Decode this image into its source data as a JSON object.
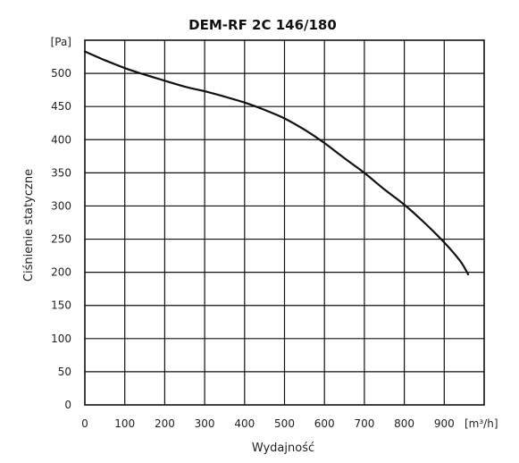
{
  "chart_data": {
    "type": "line",
    "title": "DEM-RF 2C 146/180",
    "xlabel": "Wydajność",
    "ylabel": "Ciśnienie statyczne",
    "x_unit": "[m³/h]",
    "y_unit": "[Pa]",
    "xlim": [
      0,
      1000
    ],
    "ylim": [
      0,
      550
    ],
    "x_ticks": [
      0,
      100,
      200,
      300,
      400,
      500,
      600,
      700,
      800,
      900
    ],
    "y_ticks": [
      0,
      50,
      100,
      150,
      200,
      250,
      300,
      350,
      400,
      450,
      500
    ],
    "grid": true,
    "colors": {
      "line": "#111111",
      "grid": "#111111"
    },
    "series": [
      {
        "x": [
          0,
          50,
          100,
          150,
          200,
          250,
          300,
          350,
          400,
          450,
          500,
          550,
          600,
          650,
          700,
          750,
          800,
          850,
          900,
          940,
          960
        ],
        "values": [
          533,
          520,
          508,
          498,
          489,
          480,
          473,
          465,
          456,
          445,
          432,
          415,
          395,
          372,
          350,
          325,
          302,
          275,
          245,
          217,
          197
        ]
      }
    ]
  }
}
